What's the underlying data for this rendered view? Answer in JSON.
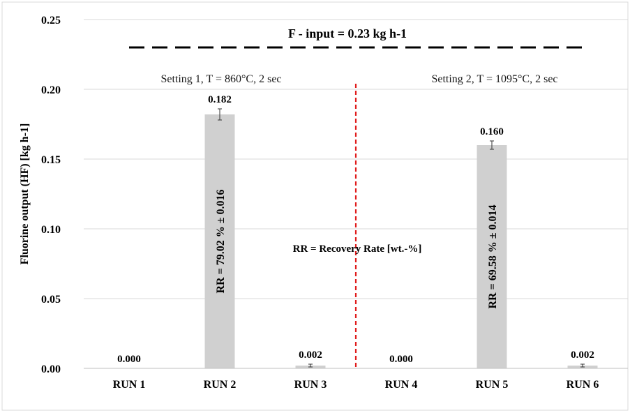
{
  "chart_data": {
    "type": "bar",
    "categories": [
      "RUN 1",
      "RUN 2",
      "RUN 3",
      "RUN 4",
      "RUN 5",
      "RUN 6"
    ],
    "values": [
      0.0,
      0.182,
      0.002,
      0.0,
      0.16,
      0.002
    ],
    "value_labels": [
      "0.000",
      "0.182",
      "0.002",
      "0.000",
      "0.160",
      "0.002"
    ],
    "error": [
      0.0,
      0.004,
      0.001,
      0.0,
      0.003,
      0.001
    ],
    "ylabel": "Fluorine output (HF) [kg h-1]",
    "xlabel": "",
    "ylim": [
      0,
      0.25
    ],
    "yticks": [
      0.0,
      0.05,
      0.1,
      0.15,
      0.2,
      0.25
    ],
    "ytick_labels": [
      "0.00",
      "0.05",
      "0.10",
      "0.15",
      "0.20",
      "0.25"
    ],
    "grid": true,
    "bar_color": "#d0d0d0",
    "reference_line": {
      "value": 0.23,
      "label": "F - input = 0.23 kg h-1",
      "style": "dashed",
      "color": "#000000"
    },
    "divider": {
      "between": [
        "RUN 3",
        "RUN 4"
      ],
      "style": "dashed",
      "color": "#e01b1b"
    },
    "settings": [
      {
        "label": "Setting  1, T = 860°C, 2 sec"
      },
      {
        "label": "Setting 2,  T = 1095°C, 2 sec"
      }
    ],
    "bar_annotations": [
      {
        "category": "RUN 2",
        "text": "RR = 79.02 % ± 0.016"
      },
      {
        "category": "RUN 5",
        "text": "RR = 69.58 % ± 0.014"
      }
    ],
    "note": "RR = Recovery Rate [wt.-%]"
  }
}
